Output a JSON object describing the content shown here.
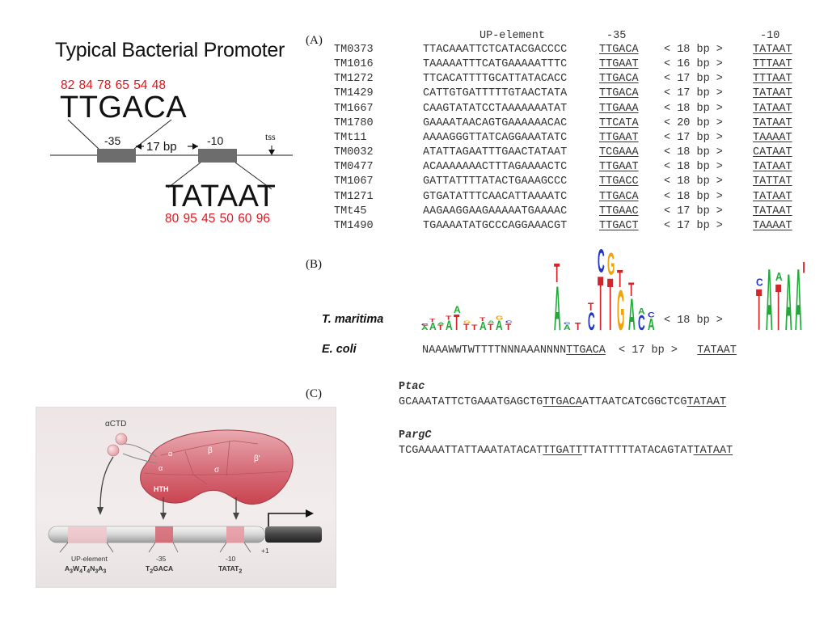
{
  "left_schematic": {
    "title": "Typical Bacterial Promoter",
    "box35_label": "-35",
    "spacer_label": "17 bp",
    "box10_label": "-10",
    "tss_label": "tss",
    "consensus35": "TTGACA",
    "consensus35_percent": "82 84 78 65 54 48",
    "consensus10": "TATAAT",
    "consensus10_percent": "80 95 45 50 60 96",
    "colors": {
      "box": "#6d6d6d",
      "percent": "#e8121b"
    }
  },
  "panel_a": {
    "label": "(A)",
    "header_up": "UP-element",
    "header_35": "-35",
    "header_10": "-10",
    "rows": [
      {
        "id": "TM0373",
        "up": "TTACAAATTCTCATACGACCCC",
        "m35": "TTGACA",
        "spacer": "< 18 bp >",
        "m10": "TATAAT"
      },
      {
        "id": "TM1016",
        "up": "TAAAAATTTCATGAAAAATTTC",
        "m35": "TTGAAT",
        "spacer": "< 16 bp >",
        "m10": "TTTAAT"
      },
      {
        "id": "TM1272",
        "up": "TTCACATTTTGCATTATACACC",
        "m35": "TTGACA",
        "spacer": "< 17 bp >",
        "m10": "TTTAAT"
      },
      {
        "id": "TM1429",
        "up": "CATTGTGATTTTTGTAACTATA",
        "m35": "TTGACA",
        "spacer": "< 17 bp >",
        "m10": "TATAAT"
      },
      {
        "id": "TM1667",
        "up": "CAAGTATATCCTAAAAAAATAT",
        "m35": "TTGAAA",
        "spacer": "< 18 bp >",
        "m10": "TATAAT"
      },
      {
        "id": "TM1780",
        "up": "GAAAATAACAGTGAAAAAACAC",
        "m35": "TTCATA",
        "spacer": "< 20 bp >",
        "m10": "TATAAT"
      },
      {
        "id": "TMt11",
        "up": "AAAAGGGTTATCAGGAAATATC",
        "m35": "TTGAAT",
        "spacer": "< 17 bp >",
        "m10": "TAAAAT"
      },
      {
        "id": "TM0032",
        "up": "ATATTAGAATTTGAACTATAAT",
        "m35": "TCGAAA",
        "spacer": "< 18 bp >",
        "m10": "CATAAT"
      },
      {
        "id": "TM0477",
        "up": "ACAAAAAAACTTTAGAAAACTC",
        "m35": "TTGAAT",
        "spacer": "< 18 bp >",
        "m10": "TATAAT"
      },
      {
        "id": "TM1067",
        "up": "GATTATTTTATACTGAAAGCCC",
        "m35": "TTGACC",
        "spacer": "< 18 bp >",
        "m10": "TATTAT"
      },
      {
        "id": "TM1271",
        "up": "GTGATATTTCAACATTAAAATC",
        "m35": "TTGACA",
        "spacer": "< 18 bp >",
        "m10": "TATAAT"
      },
      {
        "id": "TMt45",
        "up": "AAGAAGGAAGAAAAATGAAAAC",
        "m35": "TTGAAC",
        "spacer": "< 17 bp >",
        "m10": "TATAAT"
      },
      {
        "id": "TM1490",
        "up": "TGAAAATATGCCCAGGAAACGT",
        "m35": "TTGACT",
        "spacer": "< 17 bp >",
        "m10": "TAAAAT"
      }
    ]
  },
  "panel_b": {
    "label": "(B)",
    "tmaritima_label": "T. maritima",
    "tmaritima_spacer": "< 18 bp >",
    "ecoli_label": "E. coli",
    "ecoli_up": "NAAAWWTWTTTTNNNAAANNNN",
    "ecoli_m35": "TTGACA",
    "ecoli_spacer": "< 17 bp >",
    "ecoli_m10": "TATAAT",
    "logo_colors": {
      "A": "#22a83a",
      "T": "#d8232a",
      "G": "#f0a30a",
      "C": "#2233c8"
    }
  },
  "panel_c": {
    "label": "(C)",
    "ptac_name_p": "P",
    "ptac_name": "tac",
    "ptac_pre": "GCAAATATTCTGAAATGAGCTG",
    "ptac_m35": "TTGACA",
    "ptac_mid": "ATTAATCATCGGCTCG",
    "ptac_m10": "TATAAT",
    "parg_name_p": "P",
    "parg_name": "argC",
    "parg_pre": "TCGAAAATTATTAAATATACAT",
    "parg_m35": "TTGATT",
    "parg_mid": "TTATTTTTATACAGTAT",
    "parg_m10": "TATAAT"
  },
  "rnap_figure": {
    "actd_label": "αCTD",
    "alpha1": "α",
    "alpha2": "α",
    "beta": "β",
    "beta_prime": "β'",
    "sigma": "σ",
    "hth": "HTH",
    "up_label": "UP-element",
    "up_seq_parts": [
      "A",
      "3",
      "W",
      "4",
      "T",
      "4",
      "N",
      "3",
      "A",
      "3"
    ],
    "m35_label": "-35",
    "m35_seq_parts": [
      "T",
      "2",
      "GACA"
    ],
    "m10_label": "-10",
    "m10_seq_parts": [
      "TATAT",
      "2"
    ],
    "plus1": "+1"
  }
}
